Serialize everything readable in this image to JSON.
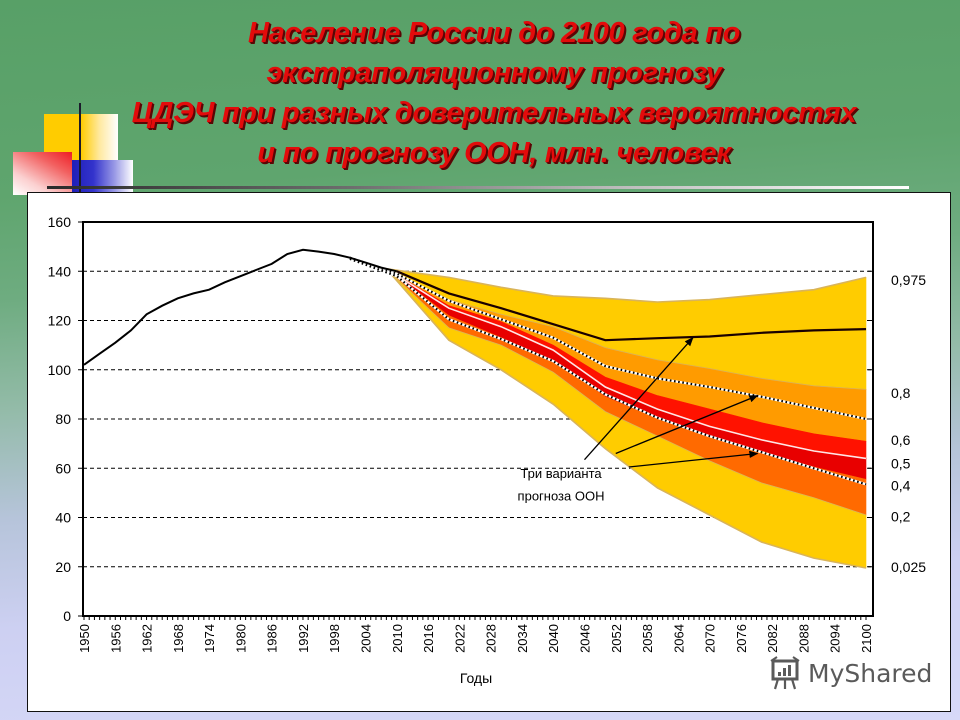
{
  "slide": {
    "title_lines": [
      "Население России до 2100 года по",
      "экстраполяционному  прогнозу",
      "ЦДЭЧ при разных доверительных вероятностях",
      "и по прогнозу ООН, млн. человек"
    ]
  },
  "chart_data": {
    "type": "area",
    "title": "Население России до 2100 года по экстраполяционному прогнозу ЦДЭЧ при разных доверительных вероятностях и по прогнозу ООН, млн. человек",
    "xlabel": "Годы",
    "ylabel": "",
    "xlim": [
      1950,
      2100
    ],
    "ylim": [
      0,
      160
    ],
    "grid": true,
    "y_ticks": [
      0,
      20,
      40,
      60,
      80,
      100,
      120,
      140,
      160
    ],
    "x_tick_labels": [
      "1950",
      "1956",
      "1962",
      "1968",
      "1974",
      "1980",
      "1986",
      "1992",
      "1998",
      "2004",
      "2010",
      "2016",
      "2022",
      "2028",
      "2034",
      "2040",
      "2046",
      "2052",
      "2058",
      "2064",
      "2070",
      "2076",
      "2082",
      "2088",
      "2094",
      "2100"
    ],
    "historical": {
      "x": [
        1950,
        1953,
        1956,
        1959,
        1962,
        1965,
        1968,
        1971,
        1974,
        1977,
        1980,
        1983,
        1986,
        1989,
        1992,
        1995,
        1998,
        2001,
        2004,
        2007,
        2010
      ],
      "values": [
        102,
        106.5,
        111,
        116,
        122.5,
        126,
        129,
        131,
        132.5,
        135.5,
        138,
        140.5,
        143,
        147,
        148.7,
        148,
        147,
        145.5,
        143.5,
        141.5,
        140
      ],
      "color": "#000000"
    },
    "quantile_bands": {
      "x": [
        2008,
        2020,
        2030,
        2040,
        2050,
        2060,
        2070,
        2080,
        2090,
        2100
      ],
      "series": [
        {
          "name": "0,975",
          "values": [
            141,
            137.5,
            133.5,
            130,
            129,
            127.5,
            128.5,
            130.5,
            132.5,
            137.5
          ]
        },
        {
          "name": "0,8",
          "values": [
            141,
            128.5,
            122.5,
            117.5,
            109,
            104,
            100.5,
            96.5,
            93.5,
            92
          ]
        },
        {
          "name": "0,6",
          "values": [
            141,
            126,
            119.5,
            110,
            97,
            89.5,
            84,
            78.5,
            74,
            71
          ]
        },
        {
          "name": "0,5",
          "values": [
            141,
            125,
            117.5,
            108,
            93,
            84,
            77,
            71.5,
            67,
            64
          ]
        },
        {
          "name": "0,4",
          "values": [
            141,
            122,
            113,
            103.5,
            89,
            80,
            72.5,
            66.5,
            60.5,
            55.5
          ]
        },
        {
          "name": "0,2",
          "values": [
            141,
            117,
            110,
            99,
            83,
            73,
            63,
            54,
            48,
            41
          ]
        },
        {
          "name": "0,025",
          "values": [
            141,
            112,
            100,
            86,
            68,
            52,
            41,
            30,
            23.5,
            19.5
          ]
        }
      ]
    },
    "band_fills": [
      {
        "upper": 0,
        "lower": 1,
        "color": "#ffcc00"
      },
      {
        "upper": 1,
        "lower": 2,
        "color": "#ff9b00"
      },
      {
        "upper": 2,
        "lower": 3,
        "color": "#ff1200"
      },
      {
        "upper": 3,
        "lower": 4,
        "color": "#e80000"
      },
      {
        "upper": 4,
        "lower": 5,
        "color": "#ff6a00"
      },
      {
        "upper": 5,
        "lower": 6,
        "color": "#ffcc00"
      }
    ],
    "band_edge_color": "#d9b45a",
    "median_line_color": "#ffe6e6",
    "un_variants": [
      {
        "name": "un-high",
        "style": "solid",
        "x": [
          2010,
          2020,
          2030,
          2040,
          2050,
          2060,
          2070,
          2080,
          2090,
          2100
        ],
        "values": [
          140,
          131,
          125,
          118.5,
          112,
          112.8,
          113.5,
          115,
          116,
          116.5
        ]
      },
      {
        "name": "un-medium",
        "style": "dotted",
        "x": [
          2001,
          2010,
          2020,
          2030,
          2040,
          2050,
          2060,
          2070,
          2080,
          2090,
          2100
        ],
        "values": [
          145.5,
          139,
          128,
          120.5,
          113,
          101.5,
          96.5,
          93,
          89,
          84.5,
          80
        ]
      },
      {
        "name": "un-low",
        "style": "dotted",
        "x": [
          2001,
          2010,
          2020,
          2030,
          2040,
          2050,
          2060,
          2070,
          2080,
          2090,
          2100
        ],
        "values": [
          145,
          138,
          120.5,
          112.5,
          103.5,
          90,
          80.5,
          73,
          66.5,
          60,
          53.5
        ]
      }
    ],
    "right_labels": [
      {
        "text": "0,975",
        "at": 136.5
      },
      {
        "text": "0,8",
        "at": 90.5
      },
      {
        "text": "0,6",
        "at": 71.5
      },
      {
        "text": "0,5",
        "at": 62
      },
      {
        "text": "0,4",
        "at": 53
      },
      {
        "text": "0,2",
        "at": 40.5
      },
      {
        "text": "0,025",
        "at": 20
      }
    ],
    "annotation": {
      "lines": [
        "Три варианта",
        "прогноза ООН"
      ],
      "x": 2041.5,
      "y": [
        56,
        47
      ],
      "arrows": [
        {
          "from": [
            2046,
            63.5
          ],
          "to": [
            2066.8,
            113
          ]
        },
        {
          "from": [
            2052,
            66
          ],
          "to": [
            2079.2,
            89.5
          ]
        },
        {
          "from": [
            2054.5,
            60.5
          ],
          "to": [
            2079.2,
            66
          ]
        }
      ]
    }
  },
  "watermark": {
    "text": "MyShared",
    "icon": "presentation-board-icon"
  }
}
